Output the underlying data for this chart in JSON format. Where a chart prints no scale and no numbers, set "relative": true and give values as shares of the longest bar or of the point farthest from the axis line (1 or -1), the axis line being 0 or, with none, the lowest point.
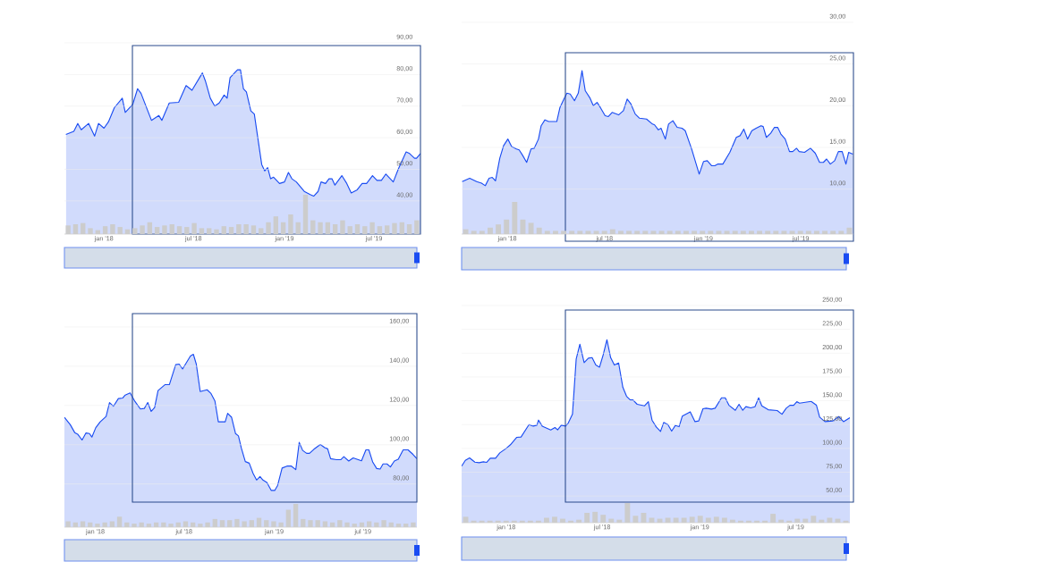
{
  "chart_data": [
    {
      "type": "area",
      "color": "#1a4cf2",
      "grid": "y",
      "xlim": [
        "2017-10-13",
        "2019-10-03"
      ],
      "ylim": [
        29.5,
        90
      ],
      "xticks": [
        {
          "value": "2018-01-01",
          "label": "jan '18"
        },
        {
          "value": "2018-07-01",
          "label": "jul '18"
        },
        {
          "value": "2019-01-01",
          "label": "jan '19"
        },
        {
          "value": "2019-07-01",
          "label": "jul '19"
        }
      ],
      "yticks": [
        {
          "value": 40,
          "label": "40,00"
        },
        {
          "value": 50,
          "label": "50,00"
        },
        {
          "value": 60,
          "label": "60,00"
        },
        {
          "value": 70,
          "label": "70,00"
        },
        {
          "value": 80,
          "label": "80,00"
        },
        {
          "value": 90,
          "label": "90,00"
        }
      ],
      "x": [
        "2017-10-16",
        "2017-11-01",
        "2017-11-09",
        "2017-11-16",
        "2017-12-01",
        "2017-12-13",
        "2017-12-21",
        "2018-01-01",
        "2018-01-10",
        "2018-01-22",
        "2018-02-07",
        "2018-02-13",
        "2018-02-28",
        "2018-03-10",
        "2018-03-17",
        "2018-04-07",
        "2018-04-22",
        "2018-04-28",
        "2018-05-13",
        "2018-06-01",
        "2018-06-16",
        "2018-06-28",
        "2018-07-19",
        "2018-07-25",
        "2018-08-04",
        "2018-08-13",
        "2018-08-22",
        "2018-09-01",
        "2018-09-07",
        "2018-09-13",
        "2018-09-28",
        "2018-10-04",
        "2018-10-10",
        "2018-10-16",
        "2018-10-25",
        "2018-11-01",
        "2018-11-16",
        "2018-11-22",
        "2018-11-28",
        "2018-12-04",
        "2018-12-10",
        "2018-12-22",
        "2019-01-01",
        "2019-01-09",
        "2019-01-16",
        "2019-01-25",
        "2019-02-10",
        "2019-02-22",
        "2019-03-01",
        "2019-03-10",
        "2019-03-16",
        "2019-03-25",
        "2019-04-01",
        "2019-04-07",
        "2019-04-13",
        "2019-04-27",
        "2019-05-07",
        "2019-05-16",
        "2019-05-28",
        "2019-06-07",
        "2019-06-16",
        "2019-06-28",
        "2019-07-07",
        "2019-07-16",
        "2019-07-25",
        "2019-08-09",
        "2019-08-19",
        "2019-09-04",
        "2019-09-11",
        "2019-09-21",
        "2019-09-25",
        "2019-10-03"
      ],
      "values": [
        61,
        62,
        64.5,
        62.5,
        64.5,
        60.5,
        64.5,
        63,
        65,
        69.5,
        72.5,
        68,
        70.5,
        75.5,
        74,
        65.5,
        67,
        65.5,
        71,
        71.2,
        76.5,
        75,
        80.5,
        78,
        72.5,
        70,
        71,
        73.5,
        72.5,
        79,
        81.5,
        81.5,
        75.5,
        74.5,
        68.5,
        67.5,
        51.5,
        49.5,
        50.5,
        47,
        47.5,
        45.5,
        46,
        49,
        47,
        46,
        43,
        42,
        41.5,
        43,
        46,
        45.5,
        47,
        47,
        45,
        48,
        45.5,
        42.5,
        43.5,
        45.5,
        45.5,
        48,
        46.5,
        46.5,
        48.5,
        46,
        50,
        55.5,
        55,
        53.5,
        53.5,
        55
      ]
    },
    {
      "type": "bar",
      "relative": true,
      "color": "#cccccc",
      "tick_labels": false,
      "categories": [
        null,
        null,
        null,
        null,
        null,
        null,
        null,
        null,
        null,
        null,
        null,
        null,
        null,
        null,
        null,
        null,
        null,
        null,
        null,
        null,
        null,
        null,
        null,
        null,
        null,
        null,
        null,
        null,
        null,
        null,
        null,
        null,
        null,
        null,
        null,
        null,
        null,
        null,
        null,
        null,
        null,
        null,
        null,
        null,
        null,
        null,
        null,
        null
      ],
      "values": [
        0.22,
        0.25,
        0.28,
        0.15,
        0.1,
        0.2,
        0.25,
        0.18,
        0.12,
        0.15,
        0.22,
        0.3,
        0.18,
        0.22,
        0.25,
        0.2,
        0.18,
        0.28,
        0.15,
        0.15,
        0.12,
        0.2,
        0.18,
        0.25,
        0.25,
        0.22,
        0.15,
        0.3,
        0.45,
        0.3,
        0.5,
        0.3,
        1.0,
        0.35,
        0.3,
        0.3,
        0.25,
        0.35,
        0.2,
        0.25,
        0.2,
        0.3,
        0.2,
        0.22,
        0.28,
        0.3,
        0.25,
        0.35
      ]
    },
    {
      "type": "area",
      "color": "#1a4cf2",
      "grid": "y",
      "xlim": [
        "2017-10-08",
        "2019-10-07"
      ],
      "ylim": [
        4.6,
        30
      ],
      "xticks": [
        {
          "value": "2018-01-01",
          "label": "jan '18"
        },
        {
          "value": "2018-07-01",
          "label": "jul '18"
        },
        {
          "value": "2019-01-01",
          "label": "jan '19"
        },
        {
          "value": "2019-07-01",
          "label": "jul '19"
        }
      ],
      "yticks": [
        {
          "value": 10,
          "label": "10,00"
        },
        {
          "value": 15,
          "label": "15,00"
        },
        {
          "value": 20,
          "label": "20,00"
        },
        {
          "value": 25,
          "label": "25,00"
        },
        {
          "value": 30,
          "label": "30,00"
        }
      ],
      "x": [
        "2017-10-09",
        "2017-10-23",
        "2017-11-05",
        "2017-11-14",
        "2017-11-21",
        "2017-11-28",
        "2017-12-04",
        "2017-12-10",
        "2017-12-18",
        "2017-12-25",
        "2018-01-02",
        "2018-01-09",
        "2018-01-18",
        "2018-01-23",
        "2018-01-29",
        "2018-02-06",
        "2018-02-14",
        "2018-02-20",
        "2018-02-28",
        "2018-03-05",
        "2018-03-12",
        "2018-03-19",
        "2018-04-03",
        "2018-04-09",
        "2018-04-17",
        "2018-04-22",
        "2018-04-28",
        "2018-05-06",
        "2018-05-13",
        "2018-05-20",
        "2018-05-26",
        "2018-06-04",
        "2018-06-10",
        "2018-06-17",
        "2018-06-23",
        "2018-07-02",
        "2018-07-08",
        "2018-07-15",
        "2018-07-27",
        "2018-08-05",
        "2018-08-12",
        "2018-08-19",
        "2018-08-27",
        "2018-09-04",
        "2018-09-17",
        "2018-09-28",
        "2018-10-02",
        "2018-10-09",
        "2018-10-14",
        "2018-10-22",
        "2018-10-28",
        "2018-11-05",
        "2018-11-13",
        "2018-11-22",
        "2018-11-28",
        "2018-12-10",
        "2018-12-24",
        "2019-01-01",
        "2019-01-08",
        "2019-01-16",
        "2019-01-22",
        "2019-01-28",
        "2019-02-06",
        "2019-02-19",
        "2019-03-03",
        "2019-03-10",
        "2019-03-17",
        "2019-03-24",
        "2019-04-01",
        "2019-04-09",
        "2019-04-18",
        "2019-04-22",
        "2019-04-28",
        "2019-05-06",
        "2019-05-13",
        "2019-05-19",
        "2019-05-25",
        "2019-06-02",
        "2019-06-10",
        "2019-06-16",
        "2019-06-23",
        "2019-06-28",
        "2019-07-08",
        "2019-07-19",
        "2019-07-28",
        "2019-08-05",
        "2019-08-12",
        "2019-08-18",
        "2019-08-25",
        "2019-09-02",
        "2019-09-09",
        "2019-09-16",
        "2019-09-23",
        "2019-09-28",
        "2019-10-06"
      ],
      "values": [
        10.9,
        11.3,
        10.9,
        10.7,
        10.4,
        11.3,
        11.4,
        11.0,
        13.7,
        15.2,
        16.0,
        15.1,
        14.8,
        14.7,
        14.1,
        13.2,
        14.8,
        14.9,
        16.0,
        17.6,
        18.3,
        18.1,
        18.1,
        19.8,
        20.9,
        21.5,
        21.4,
        20.6,
        21.5,
        24.2,
        21.8,
        20.9,
        20.0,
        20.4,
        19.8,
        18.8,
        18.7,
        19.2,
        18.9,
        19.4,
        20.8,
        20.2,
        19.0,
        18.5,
        18.4,
        17.8,
        17.7,
        17.1,
        17.3,
        16.0,
        17.8,
        18.2,
        17.4,
        17.3,
        17.0,
        14.8,
        11.8,
        13.3,
        13.4,
        12.8,
        12.8,
        13.0,
        13.0,
        14.4,
        16.2,
        16.4,
        17.2,
        16.0,
        17.0,
        17.3,
        17.6,
        17.5,
        16.2,
        16.7,
        17.4,
        17.4,
        16.6,
        16.0,
        14.5,
        14.5,
        14.9,
        14.5,
        14.4,
        14.9,
        14.3,
        13.2,
        13.2,
        13.6,
        13.0,
        13.4,
        14.5,
        14.5,
        13.0,
        14.4,
        14.2
      ]
    },
    {
      "type": "bar",
      "relative": true,
      "color": "#cccccc",
      "tick_labels": false,
      "categories": [
        null,
        null,
        null,
        null,
        null,
        null,
        null,
        null,
        null,
        null,
        null,
        null,
        null,
        null,
        null,
        null,
        null,
        null,
        null,
        null,
        null,
        null,
        null,
        null,
        null,
        null,
        null,
        null,
        null,
        null,
        null,
        null,
        null,
        null,
        null,
        null,
        null,
        null,
        null,
        null,
        null,
        null,
        null,
        null,
        null,
        null,
        null,
        null
      ],
      "values": [
        0.15,
        0.1,
        0.1,
        0.2,
        0.3,
        0.45,
        1.0,
        0.45,
        0.35,
        0.2,
        0.1,
        0.1,
        0.1,
        0.1,
        0.1,
        0.1,
        0.1,
        0.1,
        0.15,
        0.1,
        0.1,
        0.1,
        0.1,
        0.1,
        0.1,
        0.1,
        0.1,
        0.1,
        0.1,
        0.1,
        0.1,
        0.1,
        0.1,
        0.1,
        0.1,
        0.1,
        0.1,
        0.1,
        0.1,
        0.1,
        0.1,
        0.1,
        0.1,
        0.1,
        0.1,
        0.1,
        0.1,
        0.2
      ]
    },
    {
      "type": "area",
      "color": "#1a4cf2",
      "grid": "y",
      "xlim": [
        "2017-10-30",
        "2019-10-19"
      ],
      "ylim": [
        58,
        160
      ],
      "xticks": [
        {
          "value": "2018-01-01",
          "label": "jan '18"
        },
        {
          "value": "2018-07-01",
          "label": "jul '18"
        },
        {
          "value": "2019-01-01",
          "label": "jan '19"
        },
        {
          "value": "2019-07-01",
          "label": "jul '19"
        }
      ],
      "yticks": [
        {
          "value": 80,
          "label": "80,00"
        },
        {
          "value": 100,
          "label": "100,00"
        },
        {
          "value": 120,
          "label": "120,00"
        },
        {
          "value": 140,
          "label": "140,00"
        },
        {
          "value": 160,
          "label": "160,00"
        }
      ],
      "x": [
        "2017-10-30",
        "2017-11-11",
        "2017-11-20",
        "2017-11-26",
        "2017-12-05",
        "2017-12-13",
        "2017-12-20",
        "2017-12-25",
        "2018-01-02",
        "2018-01-11",
        "2018-01-23",
        "2018-01-30",
        "2018-02-07",
        "2018-02-17",
        "2018-02-26",
        "2018-03-03",
        "2018-03-13",
        "2018-03-23",
        "2018-04-03",
        "2018-04-11",
        "2018-04-18",
        "2018-04-25",
        "2018-05-02",
        "2018-05-09",
        "2018-05-23",
        "2018-06-01",
        "2018-06-14",
        "2018-06-21",
        "2018-06-28",
        "2018-07-14",
        "2018-07-20",
        "2018-07-26",
        "2018-08-03",
        "2018-08-17",
        "2018-08-25",
        "2018-09-02",
        "2018-09-09",
        "2018-09-23",
        "2018-09-28",
        "2018-10-06",
        "2018-10-14",
        "2018-10-20",
        "2018-10-26",
        "2018-11-03",
        "2018-11-11",
        "2018-11-19",
        "2018-11-26",
        "2018-12-03",
        "2018-12-09",
        "2018-12-17",
        "2018-12-26",
        "2019-01-02",
        "2019-01-08",
        "2019-01-17",
        "2019-01-27",
        "2019-02-05",
        "2019-02-14",
        "2019-02-21",
        "2019-02-28",
        "2019-03-08",
        "2019-03-14",
        "2019-03-23",
        "2019-04-05",
        "2019-04-14",
        "2019-04-20",
        "2019-04-26",
        "2019-05-08",
        "2019-05-17",
        "2019-05-23",
        "2019-06-02",
        "2019-06-11",
        "2019-06-28",
        "2019-07-07",
        "2019-07-13",
        "2019-07-21",
        "2019-07-29",
        "2019-08-05",
        "2019-08-11",
        "2019-08-19",
        "2019-08-26",
        "2019-09-03",
        "2019-09-11",
        "2019-09-21",
        "2019-10-01",
        "2019-10-11",
        "2019-10-19"
      ],
      "values": [
        114.0,
        110.2,
        106.2,
        105.4,
        102.4,
        106.0,
        105.7,
        103.9,
        108.7,
        111.7,
        114.4,
        121.5,
        119.6,
        123.5,
        123.8,
        125.3,
        126.4,
        122.0,
        118.2,
        118.5,
        121.5,
        117.0,
        119.0,
        127.6,
        130.6,
        130.6,
        140.8,
        141.1,
        138.6,
        145.2,
        146.1,
        141.1,
        127.1,
        128.0,
        126.1,
        122.3,
        111.7,
        111.7,
        116.0,
        114.0,
        105.7,
        104.5,
        98.2,
        91.4,
        90.6,
        85.3,
        82.0,
        83.8,
        82.0,
        80.8,
        76.7,
        76.7,
        79.3,
        88.1,
        89.1,
        89.1,
        87.3,
        101.2,
        97.1,
        95.6,
        95.6,
        97.7,
        100.1,
        98.5,
        97.9,
        92.9,
        92.4,
        92.4,
        93.9,
        91.7,
        93.3,
        91.8,
        97.4,
        97.4,
        91.1,
        87.9,
        87.6,
        90.2,
        90.2,
        88.7,
        91.7,
        92.6,
        97.4,
        97.4,
        95.1,
        92.9
      ]
    },
    {
      "type": "bar",
      "relative": true,
      "color": "#cccccc",
      "tick_labels": false,
      "categories": [
        null,
        null,
        null,
        null,
        null,
        null,
        null,
        null,
        null,
        null,
        null,
        null,
        null,
        null,
        null,
        null,
        null,
        null,
        null,
        null,
        null,
        null,
        null,
        null,
        null,
        null,
        null,
        null,
        null,
        null,
        null,
        null,
        null,
        null,
        null,
        null,
        null,
        null,
        null,
        null,
        null,
        null,
        null,
        null,
        null,
        null,
        null,
        null
      ],
      "values": [
        0.25,
        0.2,
        0.25,
        0.2,
        0.15,
        0.2,
        0.25,
        0.45,
        0.2,
        0.15,
        0.2,
        0.15,
        0.2,
        0.2,
        0.15,
        0.2,
        0.25,
        0.2,
        0.15,
        0.2,
        0.35,
        0.3,
        0.3,
        0.35,
        0.25,
        0.3,
        0.4,
        0.3,
        0.25,
        0.2,
        0.75,
        1.0,
        0.35,
        0.3,
        0.3,
        0.25,
        0.2,
        0.3,
        0.2,
        0.15,
        0.2,
        0.25,
        0.2,
        0.3,
        0.2,
        0.15,
        0.15,
        0.2
      ]
    },
    {
      "type": "area",
      "color": "#1a4cf2",
      "grid": "y",
      "xlim": [
        "2017-10-09",
        "2019-10-11"
      ],
      "ylim": [
        22,
        250
      ],
      "xticks": [
        {
          "value": "2018-01-01",
          "label": "jan '18"
        },
        {
          "value": "2018-07-01",
          "label": "jul '18"
        },
        {
          "value": "2019-01-01",
          "label": "jan '19"
        },
        {
          "value": "2019-07-01",
          "label": "jul '19"
        }
      ],
      "yticks": [
        {
          "value": 50,
          "label": "50,00"
        },
        {
          "value": 75,
          "label": "75,00"
        },
        {
          "value": 100,
          "label": "100,00"
        },
        {
          "value": 125,
          "label": "125,00"
        },
        {
          "value": 150,
          "label": "150,00"
        },
        {
          "value": 175,
          "label": "175,00"
        },
        {
          "value": 200,
          "label": "200,00"
        },
        {
          "value": 225,
          "label": "225,00"
        },
        {
          "value": 250,
          "label": "250,00"
        }
      ],
      "x": [
        "2017-10-09",
        "2017-10-16",
        "2017-10-24",
        "2017-11-03",
        "2017-11-11",
        "2017-11-19",
        "2017-11-25",
        "2017-12-02",
        "2017-12-12",
        "2017-12-20",
        "2018-01-01",
        "2018-01-09",
        "2018-01-21",
        "2018-01-29",
        "2018-02-13",
        "2018-02-21",
        "2018-02-28",
        "2018-03-03",
        "2018-03-10",
        "2018-03-26",
        "2018-04-03",
        "2018-04-08",
        "2018-04-15",
        "2018-04-23",
        "2018-04-28",
        "2018-05-06",
        "2018-05-13",
        "2018-05-20",
        "2018-05-28",
        "2018-06-05",
        "2018-06-12",
        "2018-06-19",
        "2018-06-26",
        "2018-07-03",
        "2018-07-10",
        "2018-07-17",
        "2018-07-24",
        "2018-08-01",
        "2018-08-09",
        "2018-08-16",
        "2018-08-23",
        "2018-08-28",
        "2018-09-05",
        "2018-09-19",
        "2018-09-26",
        "2018-10-03",
        "2018-10-11",
        "2018-10-19",
        "2018-10-25",
        "2018-11-02",
        "2018-11-09",
        "2018-11-16",
        "2018-11-23",
        "2018-11-29",
        "2018-12-14",
        "2018-12-23",
        "2018-12-30",
        "2019-01-07",
        "2019-01-13",
        "2019-01-23",
        "2019-01-30",
        "2019-02-11",
        "2019-02-18",
        "2019-02-25",
        "2019-03-09",
        "2019-03-16",
        "2019-03-23",
        "2019-03-29",
        "2019-04-07",
        "2019-04-15",
        "2019-04-22",
        "2019-04-28",
        "2019-05-10",
        "2019-05-27",
        "2019-06-05",
        "2019-06-13",
        "2019-06-20",
        "2019-06-27",
        "2019-07-03",
        "2019-07-08",
        "2019-07-19",
        "2019-07-30",
        "2019-08-09",
        "2019-08-15",
        "2019-08-25",
        "2019-09-09",
        "2019-09-20",
        "2019-09-29",
        "2019-10-11"
      ],
      "values": [
        81.3,
        87.5,
        90.0,
        85.6,
        85.0,
        85.9,
        85.3,
        89.7,
        89.7,
        95.3,
        100.0,
        103.8,
        111.6,
        111.9,
        125.0,
        123.4,
        124.4,
        129.7,
        123.4,
        119.4,
        121.9,
        119.4,
        124.4,
        123.4,
        126.6,
        135.9,
        193.8,
        209.4,
        190.0,
        194.7,
        195.3,
        187.5,
        185.3,
        198.4,
        214.1,
        195.3,
        187.5,
        189.7,
        164.1,
        154.7,
        150.9,
        150.9,
        146.3,
        144.7,
        149.1,
        129.7,
        122.5,
        117.8,
        127.2,
        125.0,
        118.1,
        124.1,
        122.8,
        133.8,
        138.4,
        128.1,
        128.8,
        141.6,
        142.2,
        141.3,
        142.2,
        153.1,
        153.1,
        145.3,
        140.0,
        146.3,
        140.0,
        143.8,
        142.5,
        143.8,
        153.1,
        144.7,
        140.6,
        139.7,
        135.9,
        142.2,
        145.3,
        145.3,
        149.1,
        147.5,
        148.4,
        149.4,
        145.3,
        132.8,
        128.1,
        128.8,
        133.4,
        128.1,
        132.2
      ]
    },
    {
      "type": "bar",
      "relative": true,
      "color": "#cccccc",
      "tick_labels": false,
      "categories": [
        null,
        null,
        null,
        null,
        null,
        null,
        null,
        null,
        null,
        null,
        null,
        null,
        null,
        null,
        null,
        null,
        null,
        null,
        null,
        null,
        null,
        null,
        null,
        null,
        null,
        null,
        null,
        null,
        null,
        null,
        null,
        null,
        null,
        null,
        null,
        null,
        null,
        null,
        null,
        null,
        null,
        null,
        null,
        null,
        null,
        null,
        null,
        null
      ],
      "values": [
        0.3,
        0.1,
        0.1,
        0.1,
        0.1,
        0.1,
        0.1,
        0.1,
        0.1,
        0.1,
        0.25,
        0.3,
        0.2,
        0.1,
        0.15,
        0.5,
        0.55,
        0.4,
        0.2,
        0.15,
        1.0,
        0.35,
        0.5,
        0.25,
        0.2,
        0.25,
        0.25,
        0.25,
        0.3,
        0.35,
        0.25,
        0.3,
        0.25,
        0.15,
        0.1,
        0.1,
        0.1,
        0.1,
        0.45,
        0.15,
        0.1,
        0.2,
        0.2,
        0.35,
        0.15,
        0.25,
        0.2,
        0.1
      ]
    }
  ]
}
